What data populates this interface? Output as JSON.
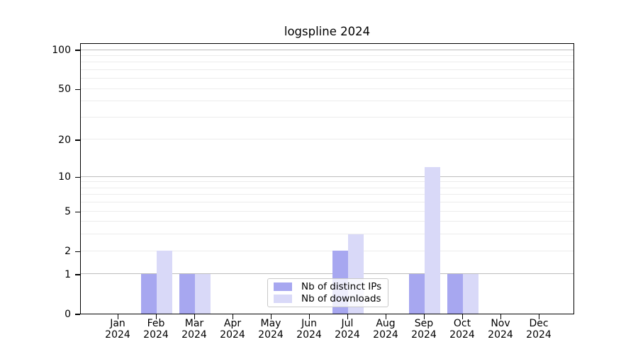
{
  "chart_data": {
    "type": "bar",
    "title": "logspline 2024",
    "categories": [
      "Jan",
      "Feb",
      "Mar",
      "Apr",
      "May",
      "Jun",
      "Jul",
      "Aug",
      "Sep",
      "Oct",
      "Nov",
      "Dec"
    ],
    "year_label": "2024",
    "series": [
      {
        "name": "Nb of distinct IPs",
        "color": "#a7a7f0",
        "values": [
          0,
          1,
          1,
          0,
          0,
          0,
          2,
          0,
          1,
          1,
          0,
          0
        ]
      },
      {
        "name": "Nb of downloads",
        "color": "#d9d9f8",
        "values": [
          0,
          2,
          1,
          0,
          0,
          0,
          3,
          0,
          12,
          1,
          0,
          0
        ]
      }
    ],
    "scale": "log1p",
    "ylim": [
      0,
      113.3
    ],
    "yticks": [
      0,
      1,
      2,
      5,
      10,
      20,
      50,
      100
    ],
    "major_gridlines": [
      1,
      10,
      100
    ],
    "minor_gridlines": [
      2,
      3,
      4,
      5,
      6,
      7,
      8,
      9,
      20,
      30,
      40,
      50,
      60,
      70,
      80,
      90
    ],
    "grid": true,
    "legend_position": "lower center",
    "colors": {
      "major_grid": "#bdbdbd",
      "minor_grid": "#ececec",
      "spine": "#000000",
      "text": "#000000",
      "legend_border": "#c9c9c9"
    }
  }
}
